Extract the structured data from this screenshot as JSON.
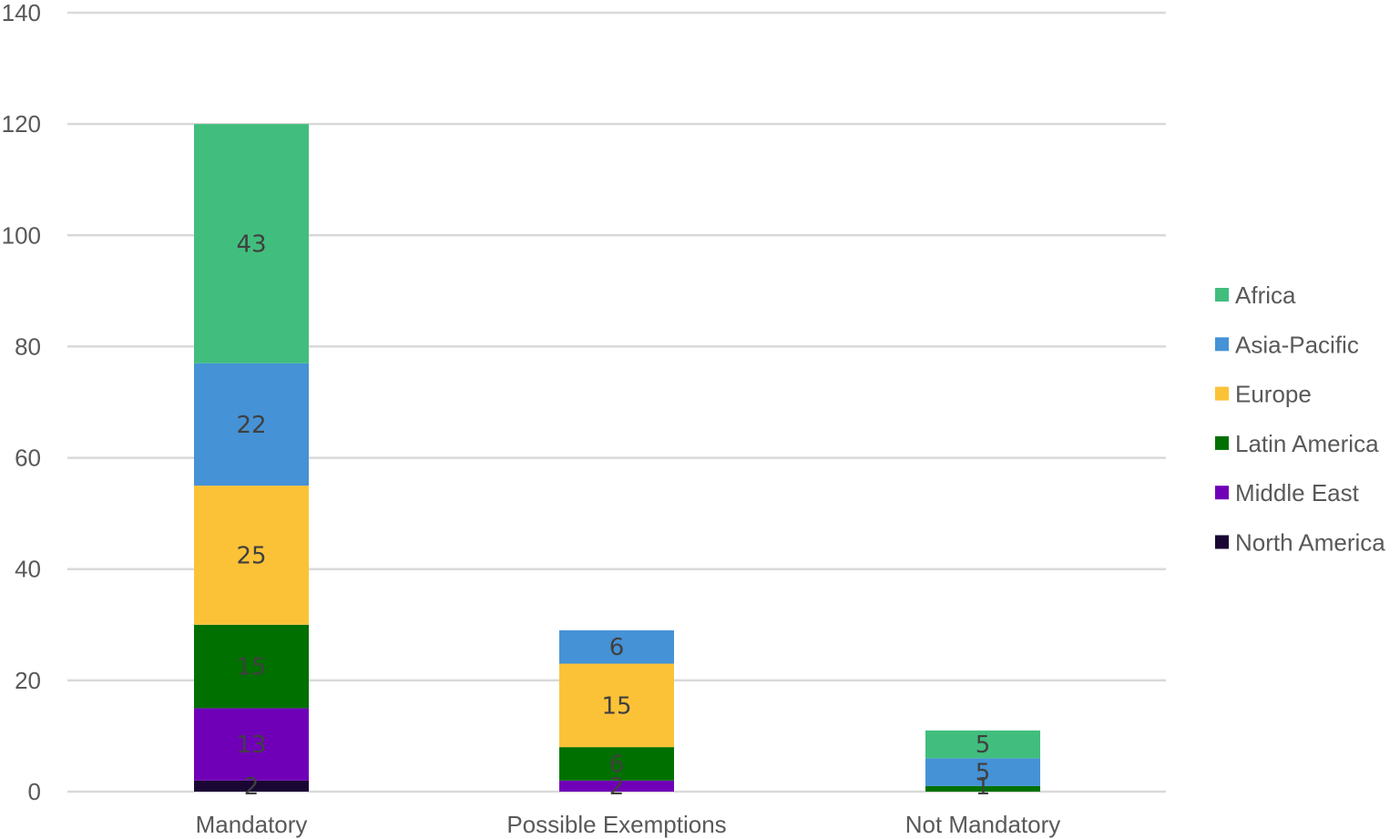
{
  "chart_data": {
    "type": "bar",
    "stacked": true,
    "categories": [
      "Mandatory",
      "Possible Exemptions",
      "Not Mandatory"
    ],
    "series": [
      {
        "name": "North America",
        "color": "#1a0633",
        "values": [
          2,
          0,
          0
        ]
      },
      {
        "name": "Middle East",
        "color": "#7000b8",
        "values": [
          13,
          2,
          0
        ]
      },
      {
        "name": "Latin America",
        "color": "#007000",
        "values": [
          15,
          6,
          1
        ]
      },
      {
        "name": "Europe",
        "color": "#fcc237",
        "values": [
          25,
          15,
          0
        ]
      },
      {
        "name": "Asia-Pacific",
        "color": "#4592d6",
        "values": [
          22,
          6,
          5
        ]
      },
      {
        "name": "Africa",
        "color": "#41be7e",
        "values": [
          43,
          0,
          5
        ]
      }
    ],
    "data_labels": [
      {
        "category": "Mandatory",
        "series": "North America",
        "text": "2"
      },
      {
        "category": "Mandatory",
        "series": "Middle East",
        "text": "13"
      },
      {
        "category": "Mandatory",
        "series": "Latin America",
        "text": "15"
      },
      {
        "category": "Mandatory",
        "series": "Europe",
        "text": "25"
      },
      {
        "category": "Mandatory",
        "series": "Asia-Pacific",
        "text": "22"
      },
      {
        "category": "Mandatory",
        "series": "Africa",
        "text": "43"
      },
      {
        "category": "Possible Exemptions",
        "series": "Middle East",
        "text": "2"
      },
      {
        "category": "Possible Exemptions",
        "series": "Latin America",
        "text": "6"
      },
      {
        "category": "Possible Exemptions",
        "series": "Europe",
        "text": "15"
      },
      {
        "category": "Possible Exemptions",
        "series": "Asia-Pacific",
        "text": "6"
      },
      {
        "category": "Not Mandatory",
        "series": "Latin America",
        "text": "1"
      },
      {
        "category": "Not Mandatory",
        "series": "Asia-Pacific",
        "text": "5"
      },
      {
        "category": "Not Mandatory",
        "series": "Africa",
        "text": "5"
      }
    ],
    "ylim": [
      0,
      140
    ],
    "yticks": [
      "0",
      "20",
      "40",
      "60",
      "80",
      "100",
      "120",
      "140"
    ],
    "grid": true,
    "legend_position": "right",
    "legend_order": [
      "Africa",
      "Asia-Pacific",
      "Europe",
      "Latin America",
      "Middle East",
      "North America"
    ],
    "title": "",
    "xlabel": "",
    "ylabel": ""
  }
}
